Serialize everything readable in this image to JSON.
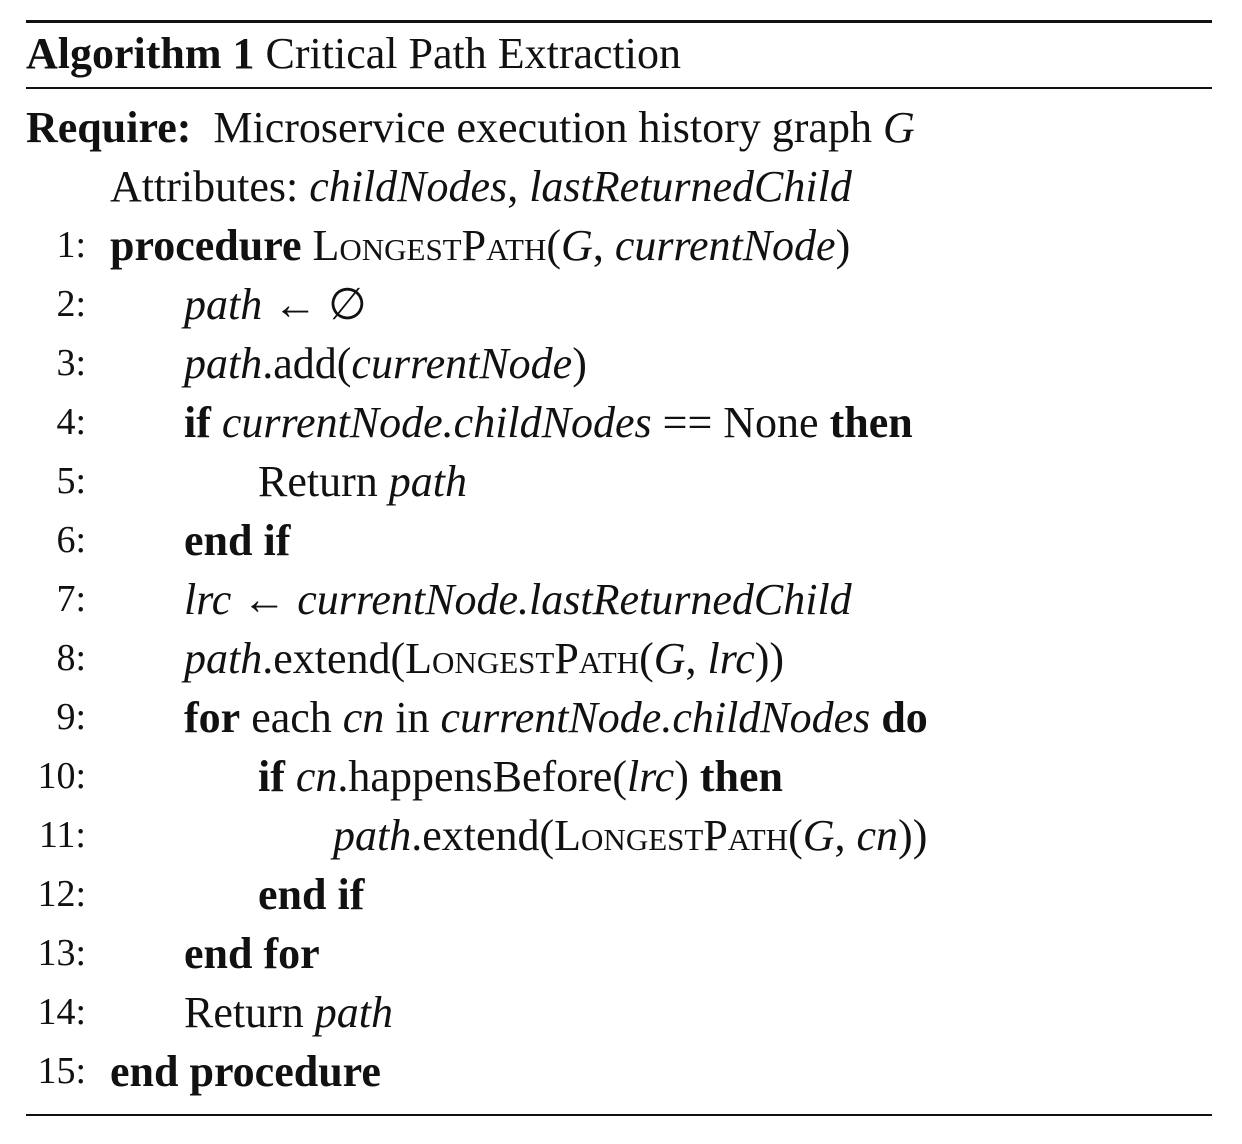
{
  "algorithm": {
    "label": "Algorithm 1",
    "title": "Critical Path Extraction",
    "require_keyword": "Require:",
    "require_text": "Microservice execution history graph",
    "require_var": "G",
    "attributes_label": "Attributes:",
    "attr_1": "childNodes",
    "attr_sep": ",",
    "attr_2": "lastReturnedChild",
    "line_numbers": [
      "1:",
      "2:",
      "3:",
      "4:",
      "5:",
      "6:",
      "7:",
      "8:",
      "9:",
      "10:",
      "11:",
      "12:",
      "13:",
      "14:",
      "15:"
    ],
    "l1": {
      "kw": "procedure",
      "fn": "LongestPath",
      "open": "(",
      "a1": "G",
      "sep": ", ",
      "a2": "currentNode",
      "close": ")"
    },
    "l2": {
      "v": "path",
      "op": " ← ∅"
    },
    "l3": {
      "v": "path",
      "m": ".add(",
      "a": "currentNode",
      "close": ")"
    },
    "l4": {
      "kw1": "if",
      "e": "currentNode.childNodes",
      "op": " == None ",
      "kw2": "then"
    },
    "l5": {
      "t": "Return ",
      "v": "path"
    },
    "l6": {
      "kw": "end if"
    },
    "l7": {
      "v": "lrc",
      "op": " ← ",
      "e": "currentNode.lastReturnedChild"
    },
    "l8": {
      "v": "path",
      "m": ".extend(",
      "fn": "LongestPath",
      "open": "(",
      "a1": "G",
      "sep": ", ",
      "a2": "lrc",
      "close": "))"
    },
    "l9": {
      "kw1": "for",
      "t1": " each ",
      "v": "cn",
      "t2": " in ",
      "e": "currentNode.childNodes",
      "kw2": " do"
    },
    "l10": {
      "kw1": "if",
      "v": " cn",
      "m": ".happensBefore(",
      "a": "lrc",
      "close": ") ",
      "kw2": "then"
    },
    "l11": {
      "v": "path",
      "m": ".extend(",
      "fn": "LongestPath",
      "open": "(",
      "a1": "G",
      "sep": ", ",
      "a2": "cn",
      "close": "))"
    },
    "l12": {
      "kw": "end if"
    },
    "l13": {
      "kw": "end for"
    },
    "l14": {
      "t": "Return ",
      "v": "path"
    },
    "l15": {
      "kw": "end procedure"
    }
  }
}
